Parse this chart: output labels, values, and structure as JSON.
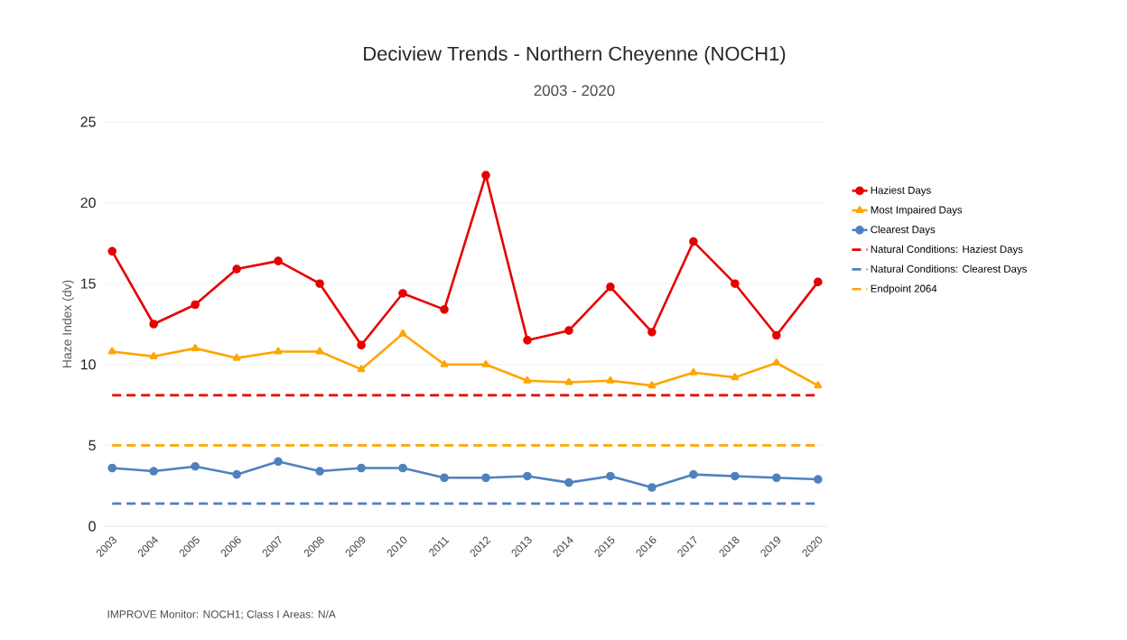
{
  "chart_data": {
    "type": "line",
    "title": "Deciview Trends - Northern Cheyenne (NOCH1)",
    "subtitle": "2003 - 2020",
    "ylabel": "Haze Index (dv)",
    "categories": [
      "2003",
      "2004",
      "2005",
      "2006",
      "2007",
      "2008",
      "2009",
      "2010",
      "2011",
      "2012",
      "2013",
      "2014",
      "2015",
      "2016",
      "2017",
      "2018",
      "2019",
      "2020"
    ],
    "series": [
      {
        "name": "Haziest Days",
        "color": "#e60000",
        "marker": "circle",
        "line_style": "solid",
        "values": [
          17.0,
          12.5,
          13.7,
          15.9,
          16.4,
          15.0,
          11.2,
          14.4,
          13.4,
          21.7,
          11.5,
          12.1,
          14.8,
          12.0,
          17.6,
          15.0,
          11.8,
          15.1
        ]
      },
      {
        "name": "Most Impaired Days",
        "color": "#ffa500",
        "marker": "triangle",
        "line_style": "solid",
        "values": [
          10.8,
          10.5,
          11.0,
          10.4,
          10.8,
          10.8,
          9.7,
          11.9,
          10.0,
          10.0,
          9.0,
          8.9,
          9.0,
          8.7,
          9.5,
          9.2,
          10.1,
          8.7
        ]
      },
      {
        "name": "Clearest Days",
        "color": "#4f81bd",
        "marker": "circle",
        "line_style": "solid",
        "values": [
          3.6,
          3.4,
          3.7,
          3.2,
          4.0,
          3.4,
          3.6,
          3.6,
          3.0,
          3.0,
          3.1,
          2.7,
          3.1,
          2.4,
          3.2,
          3.1,
          3.0,
          2.9
        ]
      },
      {
        "name": "Natural Conditions: Haziest Days",
        "color": "#e60000",
        "marker": "none",
        "line_style": "dashed",
        "values": [
          8.1,
          8.1,
          8.1,
          8.1,
          8.1,
          8.1,
          8.1,
          8.1,
          8.1,
          8.1,
          8.1,
          8.1,
          8.1,
          8.1,
          8.1,
          8.1,
          8.1,
          8.1
        ]
      },
      {
        "name": "Natural Conditions: Clearest Days",
        "color": "#4f81bd",
        "marker": "none",
        "line_style": "dashed",
        "values": [
          1.4,
          1.4,
          1.4,
          1.4,
          1.4,
          1.4,
          1.4,
          1.4,
          1.4,
          1.4,
          1.4,
          1.4,
          1.4,
          1.4,
          1.4,
          1.4,
          1.4,
          1.4
        ]
      },
      {
        "name": "Endpoint 2064",
        "color": "#ffa500",
        "marker": "none",
        "line_style": "dashed",
        "values": [
          5.0,
          5.0,
          5.0,
          5.0,
          5.0,
          5.0,
          5.0,
          5.0,
          5.0,
          5.0,
          5.0,
          5.0,
          5.0,
          5.0,
          5.0,
          5.0,
          5.0,
          5.0
        ]
      }
    ],
    "ylim": [
      0,
      25
    ],
    "yticks": [
      0,
      5,
      10,
      15,
      20,
      25
    ],
    "grid": "y",
    "legend": "right",
    "annotations": [
      "IMPROVE Monitor: NOCH1; Class I Areas: N/A"
    ]
  }
}
